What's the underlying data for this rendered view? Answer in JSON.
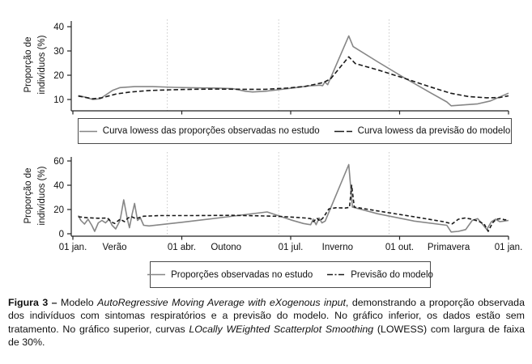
{
  "colors": {
    "observed_line": "#868686",
    "model_line": "#1a1a1a",
    "gridline": "#c9c9c9",
    "axis": "#222222",
    "text": "#111111"
  },
  "chart_data": [
    {
      "type": "line",
      "panel": "top",
      "title": "",
      "xlabel": "",
      "ylabel": "Proporção de\nindivíduos (%)",
      "x_unit": "months from 01 jan (0 = 01 jan, 3 = 01 abr, 6 = 01 jul, 9 = 01 out, 12 = 01 jan)",
      "ylim": [
        5,
        43
      ],
      "y_ticks": [
        10,
        20,
        30,
        40
      ],
      "x_ticks": [
        {
          "m": 0,
          "label": "01 jan."
        },
        {
          "m": 3,
          "label": "01 abr."
        },
        {
          "m": 6,
          "label": "01 jul."
        },
        {
          "m": 9,
          "label": "01 out."
        },
        {
          "m": 12,
          "label": "01 jan."
        }
      ],
      "x_tick_labels_visible": false,
      "season_gridlines_m": [
        2.6,
        5.67,
        8.71
      ],
      "grid": "vertical dotted at season starts",
      "series": [
        {
          "name": "Curva lowess das proporções observadas no estudo",
          "color": "#868686",
          "dash": "solid",
          "points": [
            [
              0.15,
              11.6
            ],
            [
              0.3,
              11.1
            ],
            [
              0.55,
              10.0
            ],
            [
              0.75,
              10.3
            ],
            [
              1.1,
              13.8
            ],
            [
              1.3,
              14.9
            ],
            [
              1.7,
              15.3
            ],
            [
              2.2,
              15.3
            ],
            [
              2.8,
              15.0
            ],
            [
              3.4,
              14.8
            ],
            [
              4.0,
              14.7
            ],
            [
              4.4,
              14.5
            ],
            [
              4.75,
              13.4
            ],
            [
              4.95,
              13.1
            ],
            [
              5.3,
              13.4
            ],
            [
              5.7,
              14.1
            ],
            [
              6.1,
              14.8
            ],
            [
              6.5,
              15.6
            ],
            [
              6.8,
              15.9
            ],
            [
              6.88,
              15.7
            ],
            [
              6.94,
              17.2
            ],
            [
              7.02,
              16.1
            ],
            [
              7.6,
              36.2
            ],
            [
              7.72,
              31.8
            ],
            [
              8.4,
              25.5
            ],
            [
              9.1,
              19.2
            ],
            [
              9.8,
              13.2
            ],
            [
              10.3,
              9.0
            ],
            [
              10.42,
              7.4
            ],
            [
              10.8,
              7.8
            ],
            [
              11.15,
              8.2
            ],
            [
              11.5,
              9.4
            ],
            [
              12.0,
              12.6
            ]
          ]
        },
        {
          "name": "Curva lowess da previsão do modelo",
          "color": "#1a1a1a",
          "dash": "dashed",
          "points": [
            [
              0.15,
              11.4
            ],
            [
              0.3,
              11.0
            ],
            [
              0.55,
              10.3
            ],
            [
              0.8,
              10.7
            ],
            [
              1.2,
              12.3
            ],
            [
              1.6,
              13.1
            ],
            [
              2.1,
              13.7
            ],
            [
              2.7,
              14.0
            ],
            [
              3.3,
              14.2
            ],
            [
              4.0,
              14.3
            ],
            [
              4.7,
              14.2
            ],
            [
              5.3,
              14.2
            ],
            [
              5.9,
              14.7
            ],
            [
              6.4,
              15.4
            ],
            [
              6.9,
              17.0
            ],
            [
              7.1,
              18.5
            ],
            [
              7.6,
              27.6
            ],
            [
              7.78,
              24.8
            ],
            [
              8.4,
              22.2
            ],
            [
              9.1,
              18.9
            ],
            [
              9.8,
              15.4
            ],
            [
              10.4,
              12.6
            ],
            [
              10.9,
              11.2
            ],
            [
              11.4,
              10.7
            ],
            [
              11.75,
              10.8
            ],
            [
              12.0,
              11.5
            ]
          ]
        }
      ]
    },
    {
      "type": "line",
      "panel": "bottom",
      "title": "",
      "xlabel": "",
      "ylabel": "Proporção de\nindivíduos (%)",
      "x_unit": "months from 01 jan (0 = 01 jan, 3 = 01 abr, 6 = 01 jul, 9 = 01 out, 12 = 01 jan)",
      "ylim": [
        -2,
        67
      ],
      "y_ticks": [
        0,
        20,
        40,
        60
      ],
      "x_ticks": [
        {
          "m": 0,
          "label": "01 jan."
        },
        {
          "m": 3,
          "label": "01 abr."
        },
        {
          "m": 6,
          "label": "01 jul."
        },
        {
          "m": 9,
          "label": "01 out."
        },
        {
          "m": 12,
          "label": "01 jan."
        }
      ],
      "x_tick_labels_visible": true,
      "season_labels": [
        {
          "m": 1.15,
          "label": "Verão"
        },
        {
          "m": 4.22,
          "label": "Outono"
        },
        {
          "m": 7.29,
          "label": "Inverno"
        },
        {
          "m": 10.35,
          "label": "Primavera"
        }
      ],
      "season_gridlines_m": [
        2.6,
        5.67,
        8.71
      ],
      "grid": "vertical dotted at season starts",
      "series": [
        {
          "name": "Proporções observadas no estudo",
          "color": "#868686",
          "dash": "solid",
          "points": [
            [
              0.15,
              15
            ],
            [
              0.22,
              11
            ],
            [
              0.32,
              8
            ],
            [
              0.42,
              12
            ],
            [
              0.52,
              7
            ],
            [
              0.6,
              2
            ],
            [
              0.7,
              9
            ],
            [
              0.8,
              11
            ],
            [
              0.9,
              9
            ],
            [
              1.0,
              12
            ],
            [
              1.08,
              7
            ],
            [
              1.18,
              4
            ],
            [
              1.3,
              11
            ],
            [
              1.4,
              28
            ],
            [
              1.5,
              12
            ],
            [
              1.56,
              5
            ],
            [
              1.63,
              16
            ],
            [
              1.7,
              25
            ],
            [
              1.78,
              11
            ],
            [
              1.86,
              13
            ],
            [
              1.95,
              7
            ],
            [
              2.1,
              6.5
            ],
            [
              3.0,
              9.5
            ],
            [
              4.0,
              13
            ],
            [
              4.8,
              16
            ],
            [
              5.35,
              18
            ],
            [
              5.65,
              15
            ],
            [
              6.0,
              11.5
            ],
            [
              6.35,
              8.5
            ],
            [
              6.55,
              7.5
            ],
            [
              6.62,
              12
            ],
            [
              6.7,
              7.5
            ],
            [
              6.78,
              13
            ],
            [
              6.86,
              9
            ],
            [
              6.95,
              10.5
            ],
            [
              7.6,
              57
            ],
            [
              7.7,
              22
            ],
            [
              8.4,
              16.5
            ],
            [
              9.4,
              10.5
            ],
            [
              10.3,
              7
            ],
            [
              10.42,
              1.5
            ],
            [
              10.62,
              2
            ],
            [
              10.82,
              3.5
            ],
            [
              11.0,
              11
            ],
            [
              11.15,
              12.5
            ],
            [
              11.28,
              8
            ],
            [
              11.4,
              3.5
            ],
            [
              11.53,
              10
            ],
            [
              11.64,
              12
            ],
            [
              11.76,
              10
            ],
            [
              11.88,
              10.5
            ],
            [
              12.0,
              11
            ]
          ]
        },
        {
          "name": "Previsão do modelo",
          "color": "#1a1a1a",
          "dash": "short-dash",
          "points": [
            [
              0.15,
              14
            ],
            [
              0.4,
              13.2
            ],
            [
              0.7,
              12.8
            ],
            [
              0.95,
              13
            ],
            [
              1.05,
              10
            ],
            [
              1.15,
              8.5
            ],
            [
              1.3,
              12
            ],
            [
              1.42,
              10
            ],
            [
              1.52,
              13
            ],
            [
              1.62,
              14
            ],
            [
              1.74,
              12.5
            ],
            [
              1.95,
              14.5
            ],
            [
              2.4,
              15
            ],
            [
              3.4,
              15
            ],
            [
              4.4,
              15.2
            ],
            [
              5.1,
              14.8
            ],
            [
              5.65,
              14.4
            ],
            [
              6.1,
              13.6
            ],
            [
              6.4,
              13
            ],
            [
              6.55,
              12.5
            ],
            [
              6.63,
              10
            ],
            [
              6.72,
              13
            ],
            [
              6.8,
              10.5
            ],
            [
              6.9,
              13.5
            ],
            [
              7.05,
              20.5
            ],
            [
              7.25,
              21.5
            ],
            [
              7.5,
              21.2
            ],
            [
              7.62,
              21.8
            ],
            [
              7.68,
              40
            ],
            [
              7.75,
              22
            ],
            [
              8.4,
              18.8
            ],
            [
              9.4,
              14
            ],
            [
              10.2,
              10
            ],
            [
              10.45,
              8.2
            ],
            [
              10.62,
              12
            ],
            [
              10.8,
              13
            ],
            [
              11.0,
              12
            ],
            [
              11.2,
              10
            ],
            [
              11.33,
              8
            ],
            [
              11.44,
              2
            ],
            [
              11.56,
              9
            ],
            [
              11.66,
              12
            ],
            [
              11.78,
              12.5
            ],
            [
              11.9,
              11.5
            ],
            [
              12.0,
              12
            ]
          ]
        }
      ]
    }
  ],
  "legends": [
    {
      "entries": [
        {
          "label": "Curva lowess das proporções observadas no estudo",
          "color": "#868686",
          "dash": "solid"
        },
        {
          "label": "Curva lowess da previsão do modelo",
          "color": "#1a1a1a",
          "dash": "long-dash"
        }
      ]
    },
    {
      "entries": [
        {
          "label": "Proporções observadas no estudo",
          "color": "#868686",
          "dash": "solid"
        },
        {
          "label": "Previsão do modelo",
          "color": "#1a1a1a",
          "dash": "dash-dot"
        }
      ]
    }
  ],
  "caption": {
    "segments": [
      {
        "text": "Figura 3 – ",
        "style": "bold"
      },
      {
        "text": "Modelo ",
        "style": "normal"
      },
      {
        "text": "AutoRegressive Moving Average with eXogenous input",
        "style": "italic"
      },
      {
        "text": ", demonstrando a proporção observada dos indivíduos com sintomas respiratórios e a previsão do modelo. No gráfico inferior, os dados estão sem tratamento. No gráfico superior, curvas ",
        "style": "normal"
      },
      {
        "text": "LOcally WEighted Scatterplot Smoothing",
        "style": "italic"
      },
      {
        "text": " (LOWESS) com largura de faixa de 30%.",
        "style": "normal"
      }
    ]
  }
}
